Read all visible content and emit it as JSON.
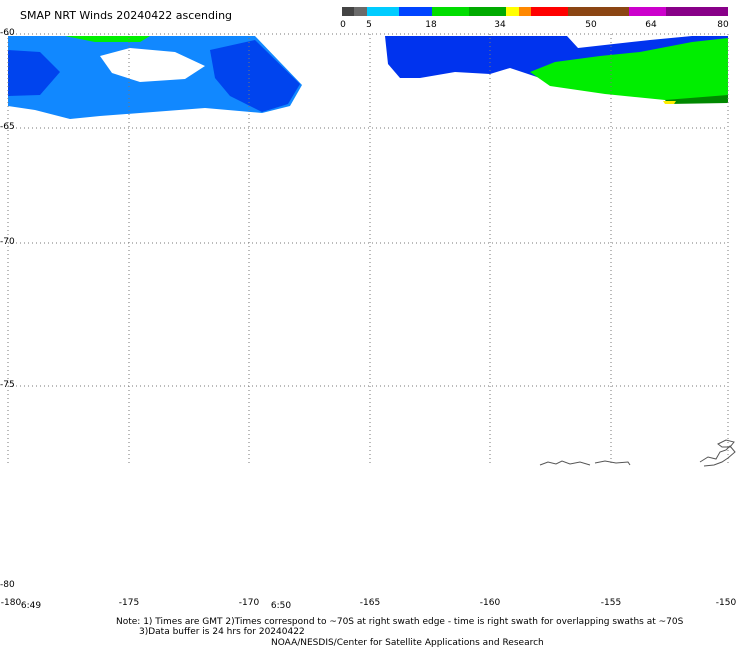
{
  "title": "SMAP NRT Winds 20240422 ascending",
  "colorbar": {
    "labels": [
      "0",
      "5",
      "18",
      "34",
      "50",
      "64",
      "80"
    ],
    "colors": [
      "#444444",
      "#6a6a6a",
      "#00ccff",
      "#0044ff",
      "#00dd00",
      "#00aa00",
      "#ffff00",
      "#ff8800",
      "#ff0000",
      "#8b4513",
      "#cc00cc",
      "#880088"
    ]
  },
  "map": {
    "lat_ticks": [
      "-60",
      "-65",
      "-70",
      "-75",
      "-80"
    ],
    "lon_ticks": [
      "-180",
      "-175",
      "-170",
      "-165",
      "-160",
      "-155",
      "-150"
    ],
    "swath_times": [
      "6:49",
      "6:50"
    ],
    "colors": {
      "light_blue": "#1188ff",
      "blue": "#0033ee",
      "green": "#00ee00",
      "dark_green": "#008800",
      "yellow": "#ffee00",
      "coast": "#555555",
      "grid": "#777777"
    }
  },
  "footer": {
    "note_line1": "Note: 1) Times are GMT 2)Times correspond to ~70S at right swath edge - time is right swath for overlapping swaths at ~70S",
    "note_line2": "3)Data buffer is 24 hrs for 20240422",
    "credit": "NOAA/NESDIS/Center for Satellite Applications and Research"
  }
}
